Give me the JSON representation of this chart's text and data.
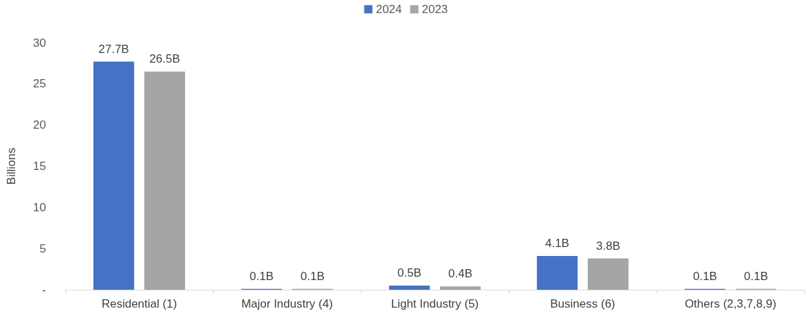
{
  "chart_data": {
    "type": "bar",
    "ylabel": "Billions",
    "categories": [
      "Residential (1)",
      "Major Industry (4)",
      "Light Industry (5)",
      "Business (6)",
      "Others (2,3,7,8,9)"
    ],
    "series": [
      {
        "name": "2024",
        "color": "#4472c4",
        "values": [
          27.7,
          0.1,
          0.5,
          4.1,
          0.1
        ],
        "value_labels": [
          "27.7B",
          "0.1B",
          "0.5B",
          "4.1B",
          "0.1B"
        ]
      },
      {
        "name": "2023",
        "color": "#a5a5a5",
        "values": [
          26.5,
          0.1,
          0.4,
          3.8,
          0.1
        ],
        "value_labels": [
          "26.5B",
          "0.1B",
          "0.4B",
          "3.8B",
          "0.1B"
        ]
      }
    ],
    "ylim": [
      0,
      30
    ],
    "yticks": [
      {
        "value": 0,
        "label": "-"
      },
      5,
      10,
      15,
      20,
      25,
      30
    ],
    "grid": false,
    "legend": "top"
  }
}
